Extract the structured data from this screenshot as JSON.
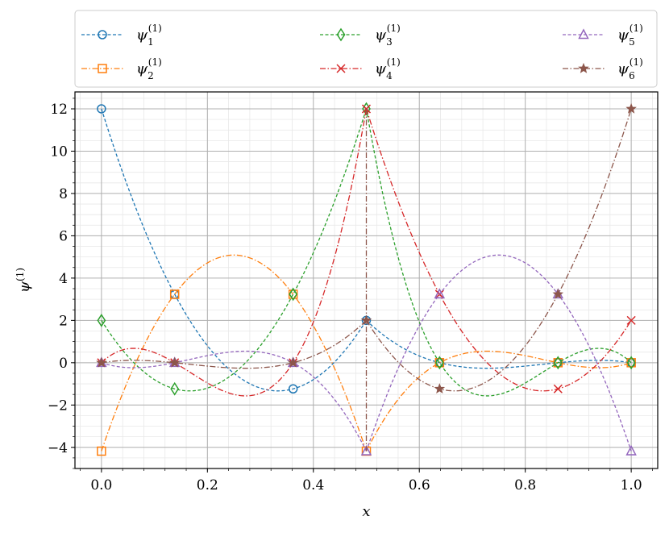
{
  "chart_data": {
    "type": "line",
    "xlabel": "x",
    "ylabel": "ψ(1)",
    "xlim": [
      -0.05,
      1.05
    ],
    "ylim": [
      -5,
      12.8
    ],
    "xticks": [
      0.0,
      0.2,
      0.4,
      0.6,
      0.8,
      1.0
    ],
    "xtick_labels": [
      "0.0",
      "0.2",
      "0.4",
      "0.6",
      "0.8",
      "1.0"
    ],
    "yticks": [
      -4,
      -2,
      0,
      2,
      4,
      6,
      8,
      10,
      12
    ],
    "ytick_labels": [
      "−4",
      "−2",
      "0",
      "2",
      "4",
      "6",
      "8",
      "10",
      "12"
    ],
    "grid": true,
    "minor_grid": true,
    "legend_position": "top, outside, 3 columns",
    "series": [
      {
        "name": "ψ1",
        "sup": "(1)",
        "color": "#1f77b4",
        "marker": "circle",
        "dash": "dashed",
        "marker_x": [
          0.0,
          0.1382,
          0.3618,
          0.5,
          0.6382,
          0.8618,
          1.0
        ],
        "marker_y": [
          12,
          3.236,
          -1.236,
          2,
          0,
          0,
          0
        ]
      },
      {
        "name": "ψ2",
        "sup": "(1)",
        "color": "#ff7f0e",
        "marker": "square",
        "dash": "dashdot",
        "marker_x": [
          0.0,
          0.1382,
          0.3618,
          0.5,
          0.6382,
          0.8618,
          1.0
        ],
        "marker_y": [
          -4.18,
          3.236,
          3.236,
          -4.18,
          0,
          0,
          0
        ]
      },
      {
        "name": "ψ3",
        "sup": "(1)",
        "color": "#2ca02c",
        "marker": "diamond",
        "dash": "dashed",
        "marker_x": [
          0.0,
          0.1382,
          0.3618,
          0.5,
          0.6382,
          0.8618,
          1.0
        ],
        "marker_y": [
          2,
          -1.236,
          3.236,
          12,
          0,
          0,
          0
        ]
      },
      {
        "name": "ψ4",
        "sup": "(1)",
        "color": "#d62728",
        "marker": "x",
        "dash": "dashdot",
        "marker_x": [
          0.0,
          0.1382,
          0.3618,
          0.5,
          0.6382,
          0.8618,
          1.0
        ],
        "marker_y": [
          0,
          0,
          0,
          12,
          3.236,
          -1.236,
          2
        ]
      },
      {
        "name": "ψ5",
        "sup": "(1)",
        "color": "#9467bd",
        "marker": "triangle",
        "dash": "dashed",
        "marker_x": [
          0.0,
          0.1382,
          0.3618,
          0.5,
          0.6382,
          0.8618,
          1.0
        ],
        "marker_y": [
          0,
          0,
          0,
          -4.18,
          3.236,
          3.236,
          -4.18
        ]
      },
      {
        "name": "ψ6",
        "sup": "(1)",
        "color": "#8c564b",
        "marker": "star",
        "dash": "dashdot",
        "marker_x": [
          0.0,
          0.1382,
          0.3618,
          0.5,
          0.6382,
          0.8618,
          1.0
        ],
        "marker_y": [
          0,
          0,
          0,
          2,
          -1.236,
          3.236,
          12
        ]
      }
    ]
  }
}
